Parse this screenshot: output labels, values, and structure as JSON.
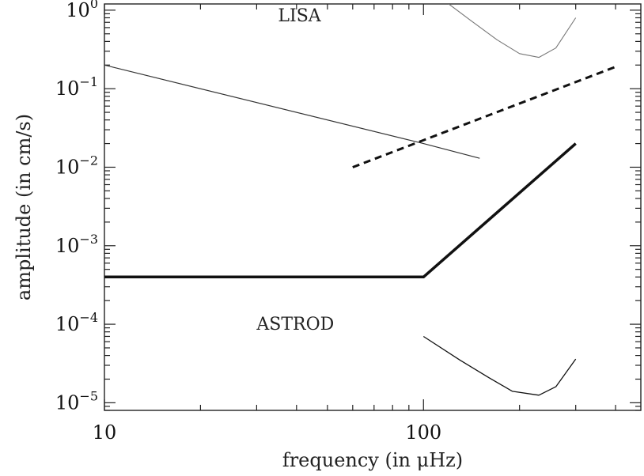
{
  "chart_data": {
    "type": "line",
    "title": "",
    "xlabel": "frequency (in μHz)",
    "ylabel": "amplitude (in cm/s)",
    "xscale": "log",
    "yscale": "log",
    "xlim": [
      10,
      480
    ],
    "ylim": [
      8e-06,
      1.2
    ],
    "grid": false,
    "x_ticks": [
      {
        "value": 10,
        "label": "10"
      },
      {
        "value": 100,
        "label": "100"
      }
    ],
    "y_ticks": [
      {
        "value": 1,
        "base": "10",
        "exp": "0"
      },
      {
        "value": 0.1,
        "base": "10",
        "exp": "−1"
      },
      {
        "value": 0.01,
        "base": "10",
        "exp": "−2"
      },
      {
        "value": 0.001,
        "base": "10",
        "exp": "−3"
      },
      {
        "value": 0.0001,
        "base": "10",
        "exp": "−4"
      },
      {
        "value": 1e-05,
        "base": "10",
        "exp": "−5"
      }
    ],
    "annotations": [
      {
        "text": "LISA",
        "x": 35,
        "y": 0.72
      },
      {
        "text": "ASTROD",
        "x": 30,
        "y": 8.5e-05
      }
    ],
    "series": [
      {
        "style": "thin-solid",
        "points": [
          [
            10,
            0.2
          ],
          [
            100,
            0.02
          ],
          [
            150,
            0.013
          ]
        ]
      },
      {
        "style": "dashed",
        "points": [
          [
            60,
            0.01
          ],
          [
            400,
            0.19
          ]
        ]
      },
      {
        "style": "thick-solid",
        "points": [
          [
            10,
            0.0004
          ],
          [
            100,
            0.0004
          ],
          [
            300,
            0.02
          ]
        ]
      },
      {
        "style": "dotted-curve",
        "points": [
          [
            120,
            1.2
          ],
          [
            140,
            0.75
          ],
          [
            170,
            0.42
          ],
          [
            200,
            0.28
          ],
          [
            230,
            0.25
          ],
          [
            260,
            0.33
          ],
          [
            300,
            0.8
          ]
        ]
      },
      {
        "style": "thin-curve",
        "points": [
          [
            100,
            7e-05
          ],
          [
            130,
            3.5e-05
          ],
          [
            160,
            2.1e-05
          ],
          [
            190,
            1.4e-05
          ],
          [
            230,
            1.25e-05
          ],
          [
            260,
            1.6e-05
          ],
          [
            300,
            3.6e-05
          ]
        ]
      }
    ]
  }
}
